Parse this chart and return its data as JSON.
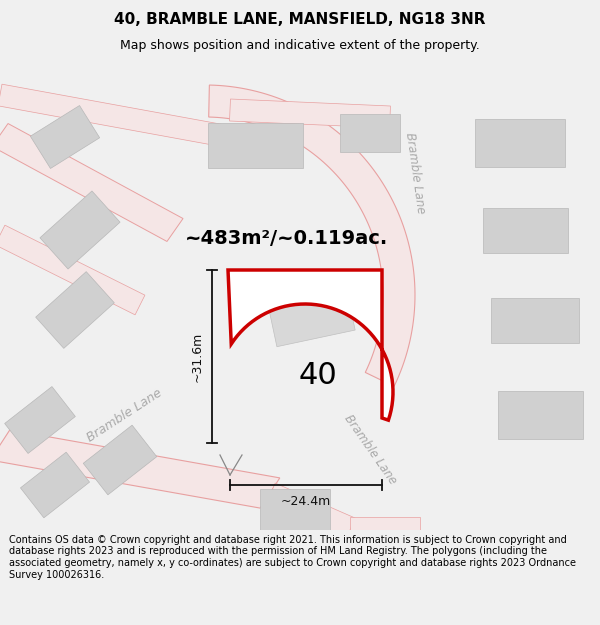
{
  "title": "40, BRAMBLE LANE, MANSFIELD, NG18 3NR",
  "subtitle": "Map shows position and indicative extent of the property.",
  "footer": "Contains OS data © Crown copyright and database right 2021. This information is subject to Crown copyright and database rights 2023 and is reproduced with the permission of HM Land Registry. The polygons (including the associated geometry, namely x, y co-ordinates) are subject to Crown copyright and database rights 2023 Ordnance Survey 100026316.",
  "area_label": "~483m²/~0.119ac.",
  "number_label": "40",
  "dim_height": "~31.6m",
  "dim_width": "~24.4m",
  "road_label_diag": "Bramble Lane",
  "road_label_vert_top": "Bramble Lane",
  "road_label_vert_bot": "Bramble Lane",
  "bg_color": "#f0f0f0",
  "map_bg": "#f8f8f8",
  "plot_stroke": "#cc0000",
  "building_color": "#d0d0d0",
  "building_edge": "#b8b8b8",
  "road_fill": "#f5e6e6",
  "road_edge": "#e8a0a0",
  "road_label_color": "#aaaaaa",
  "dim_color": "#111111",
  "title_fontsize": 11,
  "subtitle_fontsize": 9,
  "footer_fontsize": 7,
  "area_fontsize": 14,
  "num_fontsize": 22,
  "dim_fontsize": 9,
  "road_fontsize": 9
}
